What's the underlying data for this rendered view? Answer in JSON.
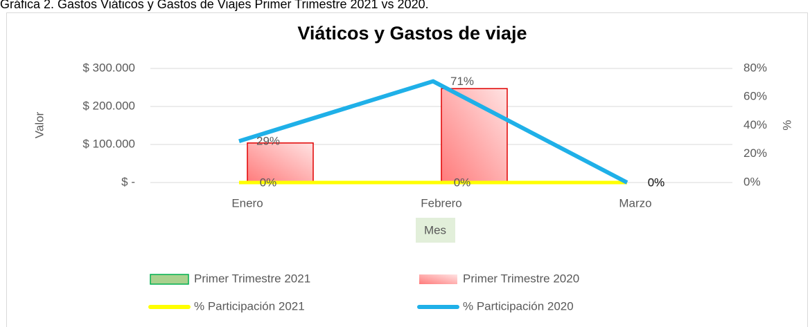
{
  "chart_data": {
    "type": "bar",
    "caption": "Gráfica 2. Gastos Viáticos y Gastos de Viajes Primer Trimestre 2021 vs 2020.",
    "title": "Viáticos y Gastos de viaje",
    "y_label": "Valor",
    "y2_label": "%",
    "x_label": "Mes",
    "categories": [
      "Enero",
      "Febrero",
      "Marzo"
    ],
    "ylim": [
      0,
      300000
    ],
    "yticks": [
      {
        "value": 0,
        "label": "$ -"
      },
      {
        "value": 100000,
        "label": "$ 100.000"
      },
      {
        "value": 200000,
        "label": "$ 200.000"
      },
      {
        "value": 300000,
        "label": "$ 300.000"
      }
    ],
    "y2lim": [
      0,
      80
    ],
    "y2ticks": [
      {
        "value": 0,
        "label": "0%"
      },
      {
        "value": 20,
        "label": "20%"
      },
      {
        "value": 40,
        "label": "40%"
      },
      {
        "value": 60,
        "label": "60%"
      },
      {
        "value": 80,
        "label": "80%"
      }
    ],
    "grid": true,
    "legend": "bottom",
    "series": [
      {
        "name": "Primer Trimestre  2021",
        "type": "bar",
        "color": "#a9d18e",
        "values": [
          0,
          0,
          0
        ]
      },
      {
        "name": "Primer Trimestre  2020",
        "type": "bar",
        "color": "#ff9c9c",
        "values": [
          104000,
          247000,
          0
        ]
      },
      {
        "name": "% Participación 2021",
        "type": "line",
        "axis": "y2",
        "color": "#ffff00",
        "values": [
          0,
          0,
          0
        ],
        "value_labels": [
          "0%",
          "0%",
          "0%"
        ]
      },
      {
        "name": "% Participación 2020",
        "type": "line",
        "axis": "y2",
        "color": "#1fb0e8",
        "values": [
          29,
          71,
          0
        ],
        "value_labels": [
          "29%",
          "71%",
          "0%"
        ]
      }
    ]
  }
}
